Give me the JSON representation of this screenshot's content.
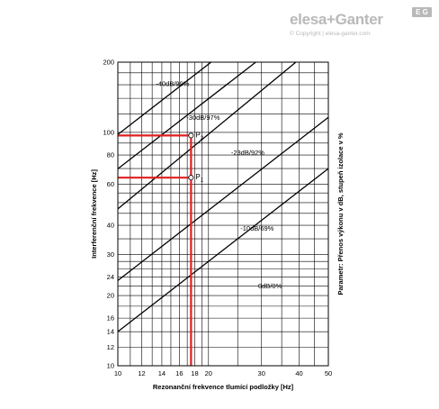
{
  "brand": {
    "name": "elesa+Ganter",
    "badge": "E G",
    "copyright": "© Copyright | elesa-ganter.com"
  },
  "chart_data": {
    "type": "line",
    "xlabel": "Rezonanční frekvence tlumící podložky [Hz]",
    "ylabel": "Interferenční frekvence [Hz]",
    "right_label": "Parametr: Přenos výkonu v dB, stupeň izolace v %",
    "x_scale": "log",
    "y_scale": "log",
    "xlim": [
      10,
      50
    ],
    "ylim": [
      10,
      200
    ],
    "x_ticks": [
      10,
      12,
      14,
      16,
      18,
      20,
      30,
      40,
      50
    ],
    "y_ticks": [
      10,
      12,
      14,
      16,
      20,
      24,
      30,
      40,
      60,
      80,
      100,
      200
    ],
    "x_grid": [
      10,
      11,
      12,
      13,
      14,
      15,
      16,
      17,
      18,
      19,
      20,
      25,
      30,
      35,
      40,
      45,
      50
    ],
    "y_grid": [
      10,
      12,
      14,
      16,
      18,
      20,
      22,
      24,
      26,
      28,
      30,
      35,
      40,
      45,
      50,
      55,
      60,
      70,
      80,
      90,
      100,
      120,
      140,
      160,
      180,
      200
    ],
    "grid": true,
    "colors": {
      "series": "#000000",
      "marker": "#e02020",
      "grid": "#000000"
    },
    "series": [
      {
        "name": "0dB/0%",
        "label_at": [
          32,
          21.5
        ],
        "x": [
          10,
          50
        ],
        "y": [
          14,
          70
        ]
      },
      {
        "name": "-10dB/69%",
        "label_at": [
          29,
          38
        ],
        "x": [
          10,
          50
        ],
        "y": [
          23.2,
          116
        ]
      },
      {
        "name": "-23dB/92%",
        "label_at": [
          27,
          80
        ],
        "x": [
          10,
          39
        ],
        "y": [
          47,
          200
        ]
      },
      {
        "name": "-30dB/97%",
        "label_at": [
          19.2,
          113
        ],
        "x": [
          10,
          28.7
        ],
        "y": [
          69.8,
          200
        ]
      },
      {
        "name": "-40dB/99%",
        "label_at": [
          15.2,
          158
        ],
        "x": [
          10,
          20.4
        ],
        "y": [
          98,
          200
        ]
      }
    ],
    "markers": [
      {
        "label": "P",
        "sub": "1",
        "x": 17.5,
        "y": 64
      },
      {
        "label": "P",
        "sub": "2",
        "x": 17.5,
        "y": 97
      }
    ]
  }
}
